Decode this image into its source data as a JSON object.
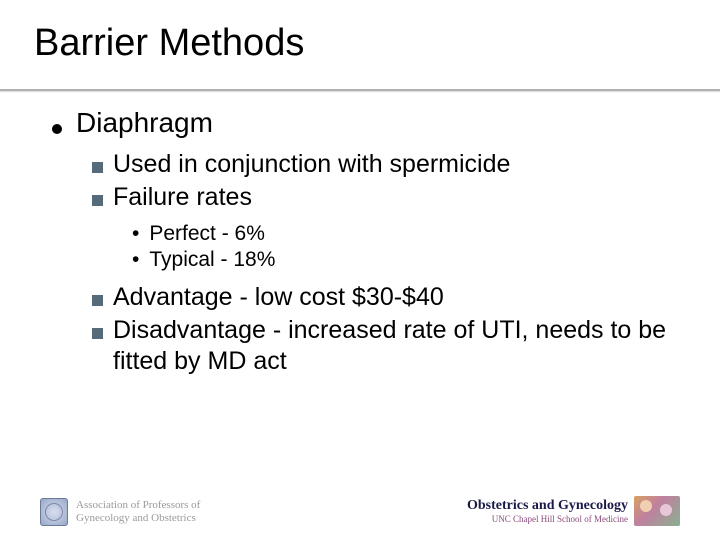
{
  "title": "Barrier Methods",
  "level1": {
    "text": "Diaphragm"
  },
  "level2a": [
    {
      "text": "Used in conjunction with spermicide"
    },
    {
      "text": "Failure rates"
    }
  ],
  "level3": [
    {
      "text": "Perfect - 6%"
    },
    {
      "text": "Typical - 18%"
    }
  ],
  "level2b": [
    {
      "text": "Advantage - low cost $30-$40"
    },
    {
      "text": "Disadvantage - increased rate of UTI, needs to be fitted by MD act"
    }
  ],
  "footer": {
    "left_line1": "Association of Professors of",
    "left_line2": "Gynecology and Obstetrics",
    "right_title": "Obstetrics and Gynecology",
    "right_sub": "UNC Chapel Hill School of Medicine"
  },
  "colors": {
    "l2_bullet": "#556b7a",
    "divider": "#b0b0b0"
  }
}
